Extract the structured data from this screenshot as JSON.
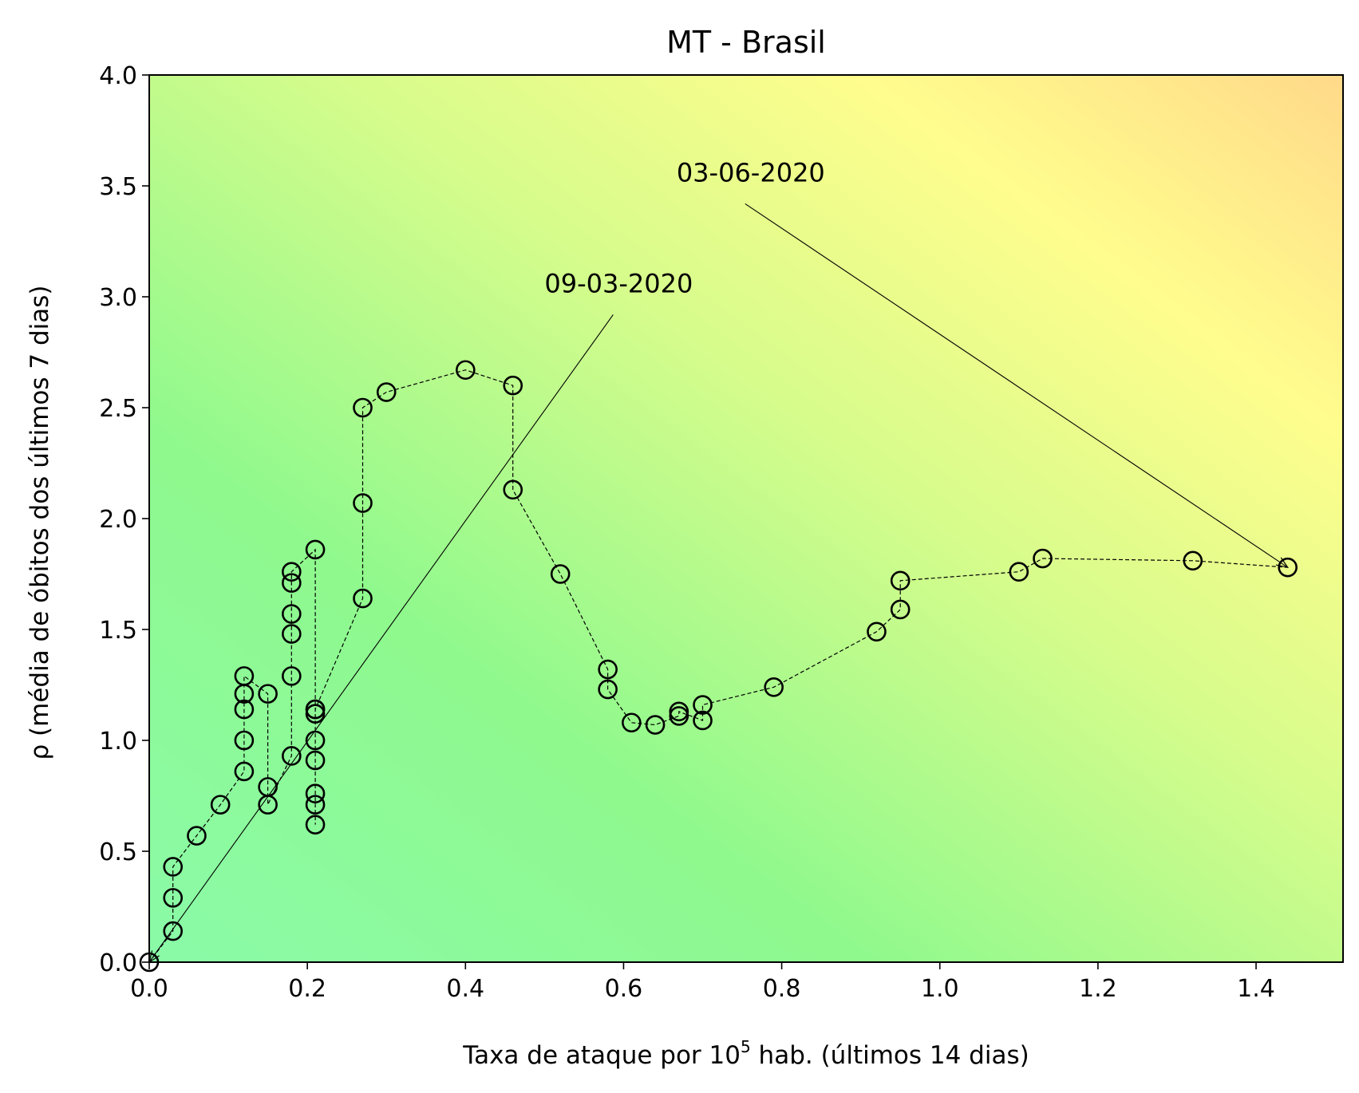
{
  "chart_data": {
    "type": "scatter",
    "title": "MT - Brasil",
    "xlabel_main": "Taxa de ataque por 10",
    "xlabel_sup": "5",
    "xlabel_rest": " hab. (últimos 14 dias)",
    "ylabel": "ρ (média de óbitos dos últimos 7 dias)",
    "xlim": [
      0,
      1.51
    ],
    "ylim": [
      0,
      4.0
    ],
    "xticks": [
      0.0,
      0.2,
      0.4,
      0.6,
      0.8,
      1.0,
      1.2,
      1.4
    ],
    "xtick_labels": [
      "0.0",
      "0.2",
      "0.4",
      "0.6",
      "0.8",
      "1.0",
      "1.2",
      "1.4"
    ],
    "yticks": [
      0.0,
      0.5,
      1.0,
      1.5,
      2.0,
      2.5,
      3.0,
      3.5,
      4.0
    ],
    "ytick_labels": [
      "0.0",
      "0.5",
      "1.0",
      "1.5",
      "2.0",
      "2.5",
      "3.0",
      "3.5",
      "4.0"
    ],
    "background": "gradient green (bottom-left) to yellow to orange (top-right)",
    "marker_color": "#000000",
    "series": [
      {
        "x": [
          0.0,
          0.03,
          0.03,
          0.03,
          0.06,
          0.09,
          0.12,
          0.12,
          0.12,
          0.12,
          0.12,
          0.15,
          0.15,
          0.15,
          0.18,
          0.18,
          0.18,
          0.18,
          0.18,
          0.18,
          0.21,
          0.21,
          0.21,
          0.21,
          0.21,
          0.21,
          0.21,
          0.21,
          0.21,
          0.27,
          0.27,
          0.27,
          0.3,
          0.4,
          0.46,
          0.46,
          0.52,
          0.58,
          0.58,
          0.61,
          0.64,
          0.67,
          0.67,
          0.7,
          0.7,
          0.79,
          0.92,
          0.95,
          0.95,
          1.1,
          1.13,
          1.32,
          1.44
        ],
        "y": [
          0.0,
          0.14,
          0.29,
          0.43,
          0.57,
          0.71,
          0.86,
          1.0,
          1.14,
          1.21,
          1.29,
          1.21,
          0.79,
          0.71,
          0.93,
          1.29,
          1.48,
          1.57,
          1.71,
          1.76,
          1.86,
          1.14,
          1.12,
          1.0,
          0.91,
          0.76,
          0.71,
          0.62,
          1.14,
          1.64,
          2.07,
          2.5,
          2.57,
          2.67,
          2.6,
          2.13,
          1.75,
          1.32,
          1.23,
          1.08,
          1.07,
          1.11,
          1.13,
          1.09,
          1.16,
          1.24,
          1.49,
          1.59,
          1.72,
          1.76,
          1.82,
          1.81,
          1.78
        ]
      }
    ],
    "annotations": [
      {
        "text": "09-03-2020",
        "target": [
          0.0,
          0.0
        ],
        "text_pos": [
          0.5,
          3.02
        ]
      },
      {
        "text": "03-06-2020",
        "target": [
          1.44,
          1.78
        ],
        "text_pos": [
          0.667,
          3.52
        ]
      }
    ]
  }
}
